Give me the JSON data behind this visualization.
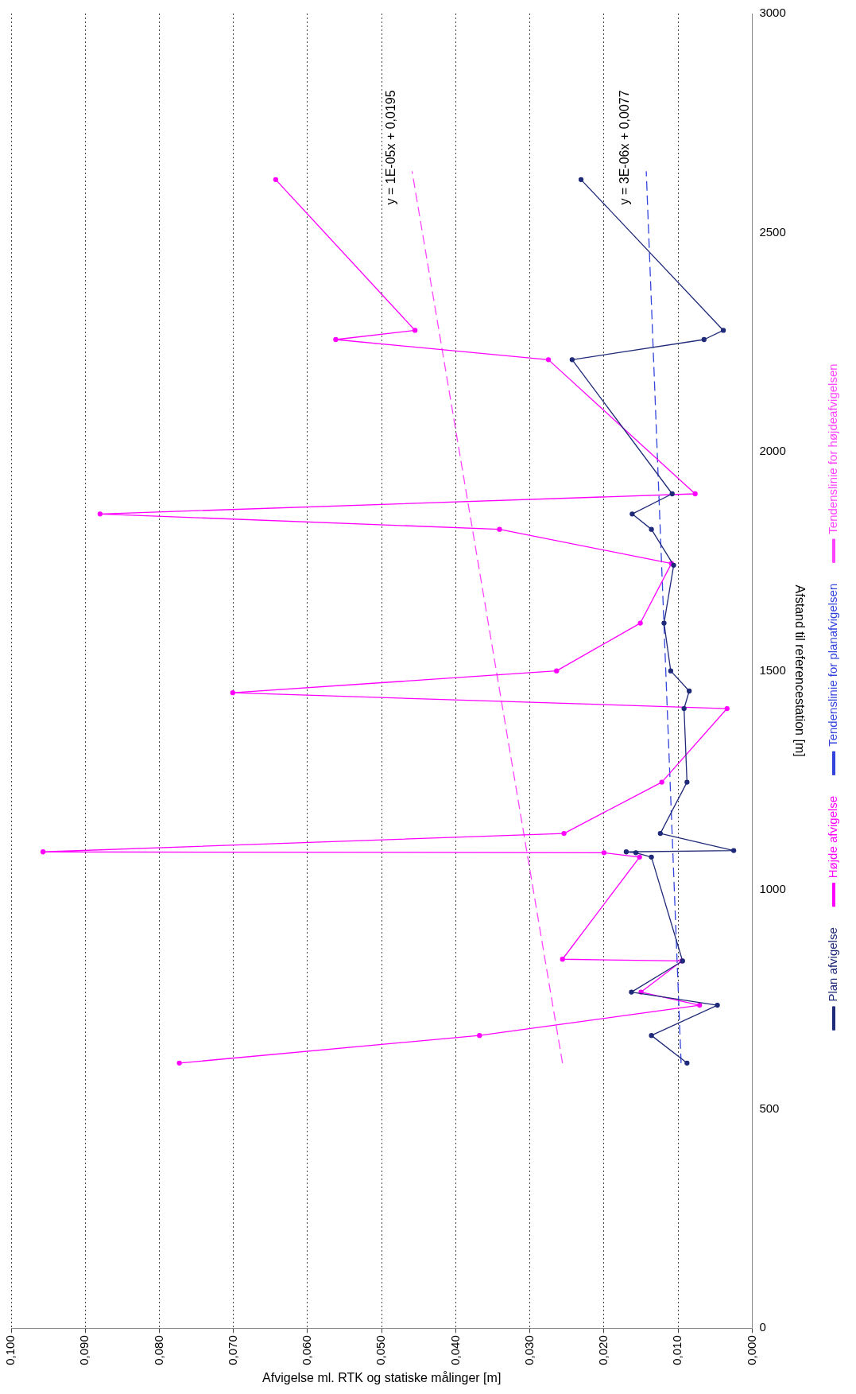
{
  "chart_data": {
    "type": "line",
    "xlabel": "Afvigelse ml. RTK og statiske målinger [m]",
    "ylabel": "Afstand til referencestation [m]",
    "ylim": [
      0,
      3000
    ],
    "yticks": [
      0,
      500,
      1000,
      1500,
      2000,
      2500,
      3000
    ],
    "xlim": [
      0.1,
      0
    ],
    "xticks": [
      {
        "value": 0.1,
        "label": "0,100"
      },
      {
        "value": 0.09,
        "label": "0,090"
      },
      {
        "value": 0.08,
        "label": "0,080"
      },
      {
        "value": 0.07,
        "label": "0,070"
      },
      {
        "value": 0.06,
        "label": "0,060"
      },
      {
        "value": 0.05,
        "label": "0,050"
      },
      {
        "value": 0.04,
        "label": "0,040"
      },
      {
        "value": 0.03,
        "label": "0,030"
      },
      {
        "value": 0.02,
        "label": "0,020"
      },
      {
        "value": 0.01,
        "label": "0,010"
      },
      {
        "value": 0,
        "label": "0,000"
      }
    ],
    "grid": "x",
    "legend": "right",
    "series": [
      {
        "name": "Plan afvigelse",
        "color": "#1f2a78",
        "type": "line",
        "marker": "circle",
        "values": [
          605,
          668,
          737,
          767,
          838,
          1075,
          1085,
          1087,
          1090,
          1129,
          1246,
          1414,
          1454,
          1500,
          1609,
          1741,
          1823,
          1858,
          1904,
          2210,
          2256,
          2277,
          2621
        ],
        "x": [
          0.0088,
          0.0136,
          0.0047,
          0.0163,
          0.0094,
          0.0136,
          0.0157,
          0.017,
          0.0025,
          0.0124,
          0.0088,
          0.0092,
          0.0085,
          0.011,
          0.0119,
          0.0106,
          0.0136,
          0.0162,
          0.0108,
          0.0243,
          0.0065,
          0.0039,
          0.0231
        ]
      },
      {
        "name": "Højde afvigelse",
        "color": "#ff00ff",
        "type": "line",
        "marker": "circle",
        "values": [
          605,
          668,
          737,
          767,
          838,
          842,
          1075,
          1085,
          1087,
          1129,
          1246,
          1414,
          1450,
          1500,
          1609,
          1745,
          1823,
          1858,
          1904,
          2210,
          2256,
          2277,
          2621
        ],
        "x": [
          0.0773,
          0.0368,
          0.0071,
          0.015,
          0.0095,
          0.0256,
          0.0152,
          0.02,
          0.0957,
          0.0254,
          0.0122,
          0.0034,
          0.0701,
          0.0264,
          0.0151,
          0.0109,
          0.0341,
          0.088,
          0.0077,
          0.0275,
          0.0562,
          0.0455,
          0.0643
        ]
      },
      {
        "name": "Tendenslinie for planafvigelsen",
        "color": "#3344dd",
        "type": "line",
        "marker": "none",
        "line_style": "dashed",
        "values": [
          605,
          2640
        ],
        "x": [
          0.0096,
          0.0143
        ]
      },
      {
        "name": "Tendenslinie for højdeafvigelsen",
        "color": "#ff44ff",
        "type": "line",
        "marker": "none",
        "line_style": "dashed",
        "values": [
          605,
          2640
        ],
        "x": [
          0.0256,
          0.0459
        ]
      }
    ],
    "annotations": [
      "y = 3E-06x + 0,0077",
      "y = 1E-05x + 0,0195"
    ]
  }
}
